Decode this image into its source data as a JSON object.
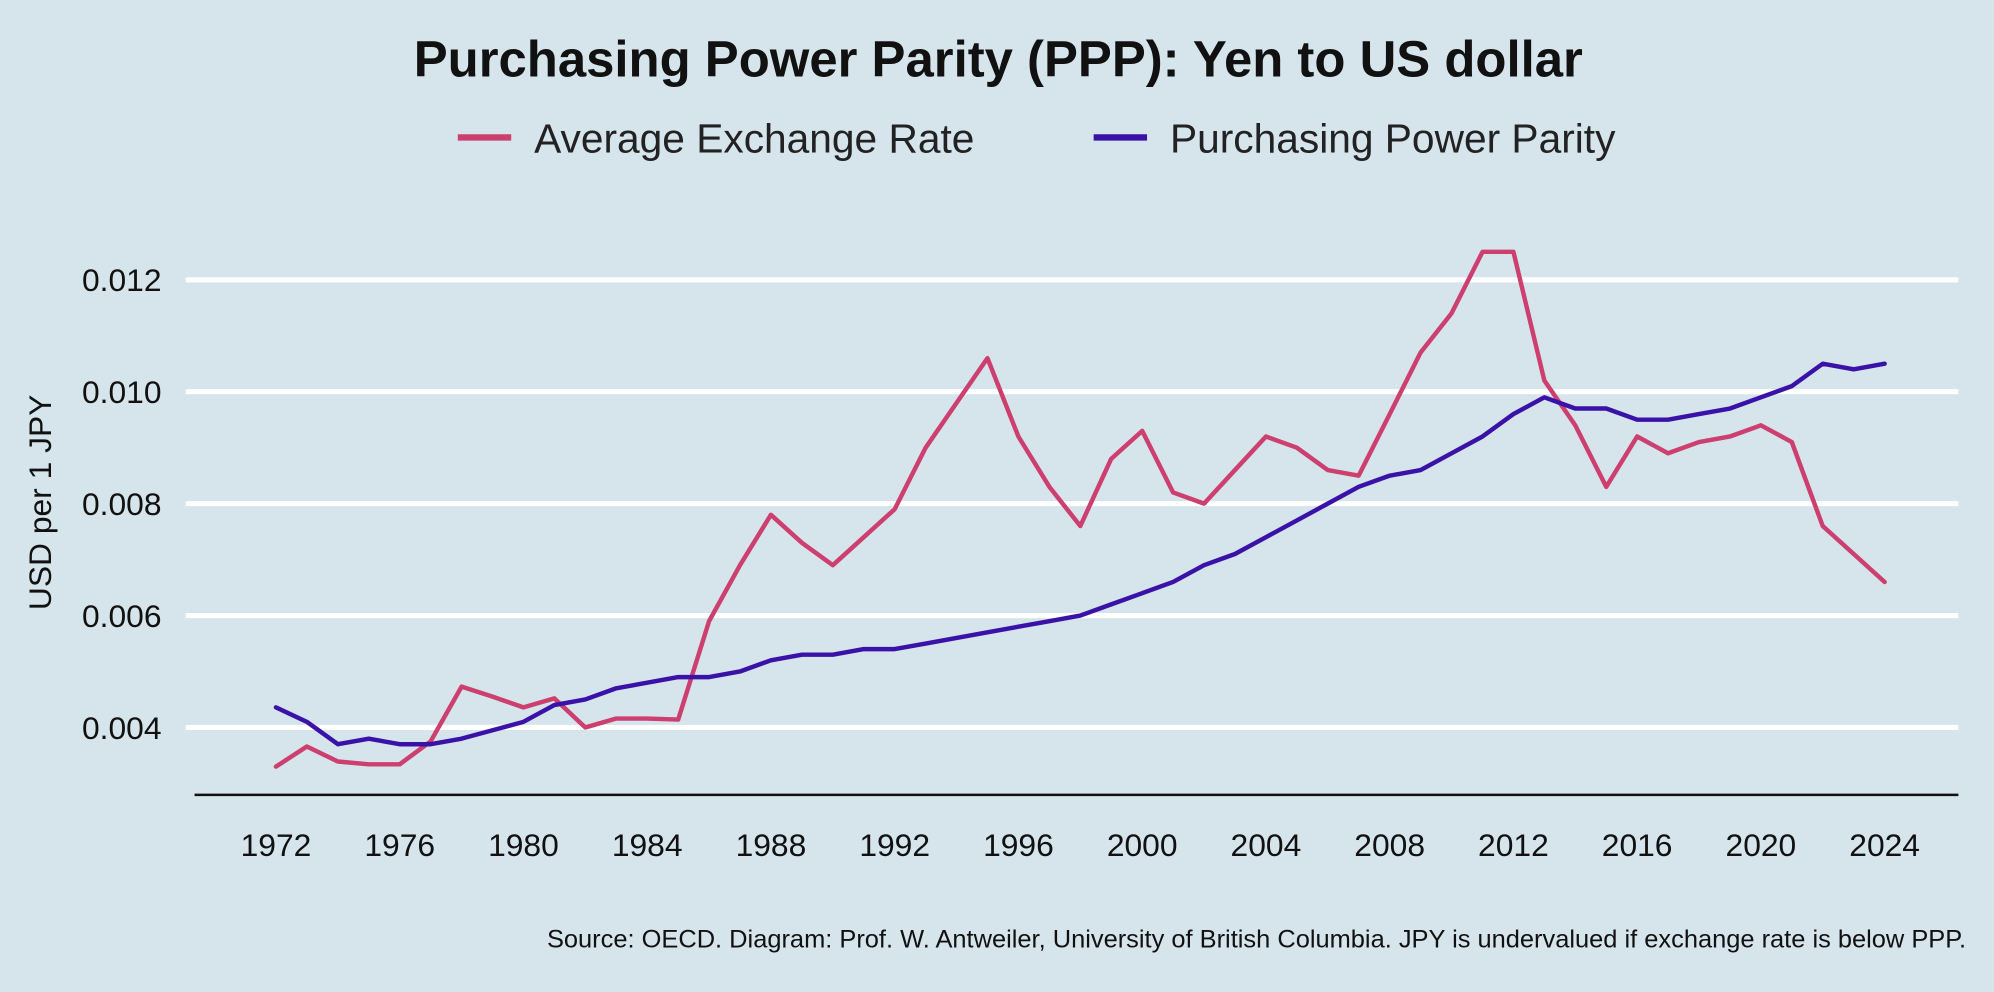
{
  "chart_data": {
    "type": "line",
    "title": "Purchasing Power Parity (PPP): Yen to US dollar",
    "xlabel": "",
    "ylabel": "USD per 1 JPY",
    "ylim": [
      0.0028,
      0.0128
    ],
    "xlim": [
      1969,
      2027
    ],
    "grid": true,
    "legend_position": "top-center",
    "y_ticks": [
      "0.004",
      "0.006",
      "0.008",
      "0.010",
      "0.012"
    ],
    "y_tick_values": [
      0.004,
      0.006,
      0.008,
      0.01,
      0.012
    ],
    "x_ticks": [
      "1972",
      "1976",
      "1980",
      "1984",
      "1988",
      "1992",
      "1996",
      "2000",
      "2004",
      "2008",
      "2012",
      "2016",
      "2020",
      "2024"
    ],
    "x": [
      1972,
      1973,
      1974,
      1975,
      1976,
      1977,
      1978,
      1979,
      1980,
      1981,
      1982,
      1983,
      1984,
      1985,
      1986,
      1987,
      1988,
      1989,
      1990,
      1991,
      1992,
      1993,
      1994,
      1995,
      1996,
      1997,
      1998,
      1999,
      2000,
      2001,
      2002,
      2003,
      2004,
      2005,
      2006,
      2007,
      2008,
      2009,
      2010,
      2011,
      2012,
      2013,
      2014,
      2015,
      2016,
      2017,
      2018,
      2019,
      2020,
      2021,
      2022,
      2023,
      2024
    ],
    "series": [
      {
        "name": "Average Exchange Rate",
        "color": "#cc3f6e",
        "values": [
          0.0033,
          0.00366,
          0.00339,
          0.00334,
          0.00334,
          0.00375,
          0.00473,
          0.00455,
          0.00436,
          0.00452,
          0.004,
          0.00416,
          0.00416,
          0.00414,
          0.0059,
          0.0069,
          0.0078,
          0.0073,
          0.0069,
          0.0074,
          0.0079,
          0.009,
          0.0098,
          0.0106,
          0.0092,
          0.0083,
          0.0076,
          0.0088,
          0.0093,
          0.0082,
          0.008,
          0.0086,
          0.0092,
          0.009,
          0.0086,
          0.0085,
          0.0096,
          0.0107,
          0.0114,
          0.0125,
          0.0125,
          0.0102,
          0.0094,
          0.0083,
          0.0092,
          0.0089,
          0.0091,
          0.0092,
          0.0094,
          0.0091,
          0.0076,
          0.0071,
          0.0066
        ]
      },
      {
        "name": "Purchasing Power Parity",
        "color": "#3b12a8",
        "values": [
          0.00436,
          0.0041,
          0.0037,
          0.0038,
          0.0037,
          0.0037,
          0.0038,
          0.00395,
          0.0041,
          0.0044,
          0.0045,
          0.0047,
          0.0048,
          0.0049,
          0.0049,
          0.005,
          0.0052,
          0.0053,
          0.0053,
          0.0054,
          0.0054,
          0.0055,
          0.0056,
          0.0057,
          0.0058,
          0.0059,
          0.006,
          0.0062,
          0.0064,
          0.0066,
          0.0069,
          0.0071,
          0.0074,
          0.0077,
          0.008,
          0.0083,
          0.0085,
          0.0086,
          0.0089,
          0.0092,
          0.0096,
          0.0099,
          0.0097,
          0.0097,
          0.0095,
          0.0095,
          0.0096,
          0.0097,
          0.0099,
          0.0101,
          0.0105,
          0.0104,
          0.0105
        ]
      }
    ],
    "source_note": "Source: OECD. Diagram: Prof. W. Antweiler, University of British Columbia. JPY is undervalued if exchange rate is below PPP."
  }
}
